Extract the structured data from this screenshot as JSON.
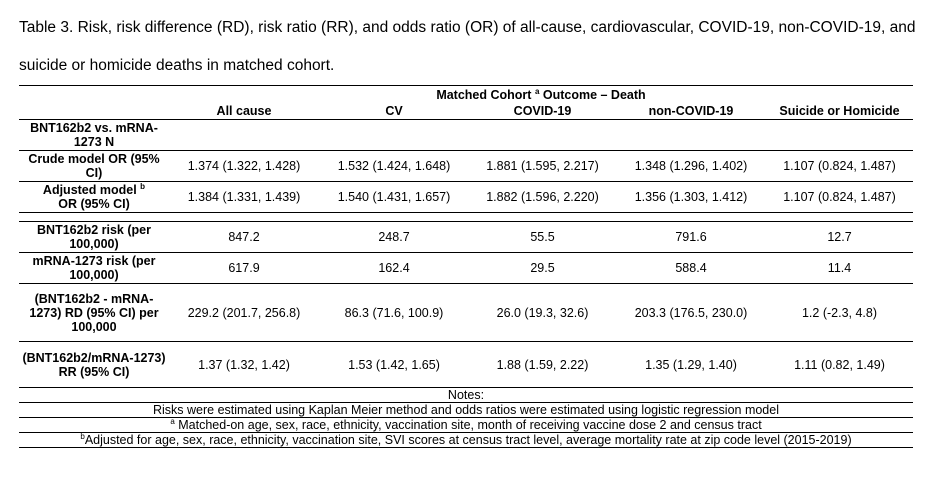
{
  "caption": "Table 3. Risk, risk difference (RD), risk ratio (RR), and odds ratio (OR) of all-cause, cardiovascular, COVID-19, non-COVID-19, and suicide or homicide deaths in matched cohort.",
  "header": {
    "group": "Matched Cohort",
    "group_sup": "a",
    "group_tail": " Outcome – Death",
    "columns": [
      "All cause",
      "CV",
      "COVID-19",
      "non-COVID-19",
      "Suicide or Homicide"
    ]
  },
  "rows": [
    {
      "label": "BNT162b2 vs. mRNA-1273 N",
      "values": [
        "",
        "",
        "",
        "",
        ""
      ]
    },
    {
      "label": "Crude model OR (95% CI)",
      "values": [
        "1.374 (1.322, 1.428)",
        "1.532 (1.424, 1.648)",
        "1.881 (1.595, 2.217)",
        "1.348 (1.296, 1.402)",
        "1.107 (0.824, 1.487)"
      ]
    },
    {
      "label": "Adjusted model",
      "label_sup": "b",
      "label_tail": "OR (95% CI)",
      "values": [
        "1.384 (1.331, 1.439)",
        "1.540 (1.431, 1.657)",
        "1.882 (1.596, 2.220)",
        "1.356 (1.303, 1.412)",
        "1.107 (0.824, 1.487)"
      ]
    },
    {
      "label": "BNT162b2 risk (per 100,000)",
      "values": [
        "847.2",
        "248.7",
        "55.5",
        "791.6",
        "12.7"
      ]
    },
    {
      "label": "mRNA-1273 risk (per 100,000)",
      "values": [
        "617.9",
        "162.4",
        "29.5",
        "588.4",
        "11.4"
      ]
    },
    {
      "label": "(BNT162b2 - mRNA-1273) RD (95% CI) per 100,000",
      "values": [
        "229.2 (201.7, 256.8)",
        "86.3 (71.6, 100.9)",
        "26.0 (19.3, 32.6)",
        "203.3 (176.5, 230.0)",
        "1.2 (-2.3, 4.8)"
      ]
    },
    {
      "label": "(BNT162b2/mRNA-1273) RR (95% CI)",
      "values": [
        "1.37 (1.32, 1.42)",
        "1.53 (1.42, 1.65)",
        "1.88 (1.59, 2.22)",
        "1.35 (1.29, 1.40)",
        "1.11 (0.82, 1.49)"
      ]
    }
  ],
  "notes": {
    "title": "Notes:",
    "lines": [
      {
        "sup": "",
        "text": "Risks were estimated using Kaplan Meier method and odds ratios were estimated using logistic regression model"
      },
      {
        "sup": "a",
        "text": " Matched-on age, sex, race, ethnicity, vaccination site, month of receiving vaccine dose 2 and census tract"
      },
      {
        "sup": "b",
        "text": "Adjusted for age, sex, race, ethnicity, vaccination site, SVI scores at census tract level, average mortality rate at zip code level (2015-2019)"
      }
    ]
  }
}
